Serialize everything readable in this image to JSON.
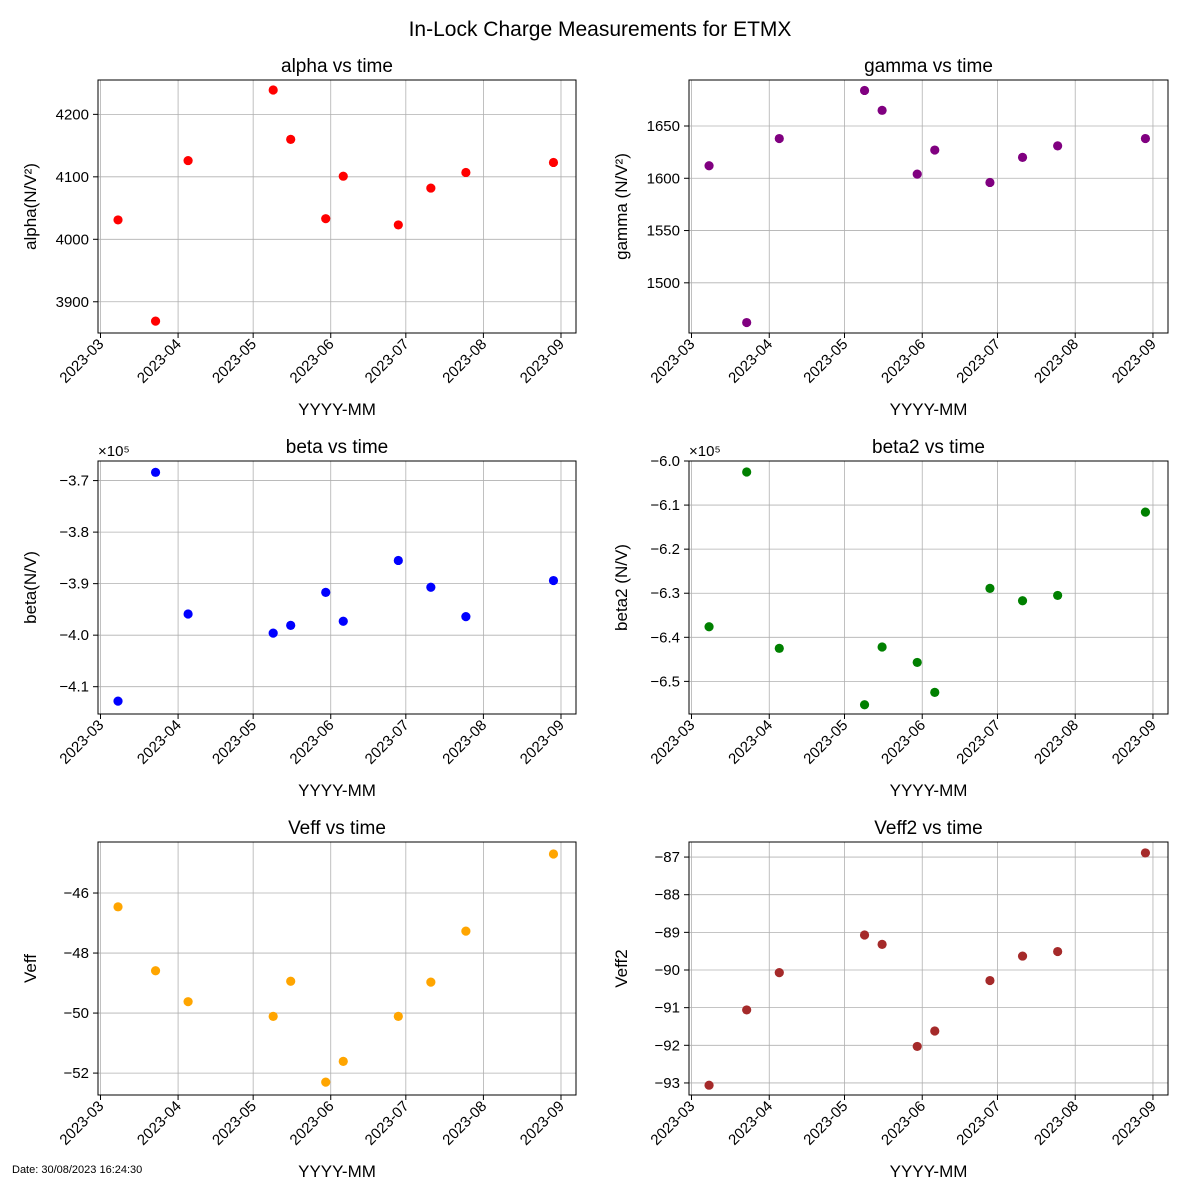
{
  "figure": {
    "title": "In-Lock Charge Measurements for ETMX",
    "date_note": "Date: 30/08/2023 16:24:30"
  },
  "chart_data": [
    {
      "type": "scatter",
      "title": "alpha vs time",
      "xlabel": "YYYY-MM",
      "ylabel": "alpha(N/V²)",
      "color": "#ff0000",
      "grid": true,
      "x_ticks": [
        "2023-03",
        "2023-04",
        "2023-05",
        "2023-06",
        "2023-07",
        "2023-08",
        "2023-09"
      ],
      "y_ticks": [
        3900,
        4000,
        4100,
        4200
      ],
      "ylim": [
        3850,
        4255
      ],
      "points": [
        {
          "x": "2023-03-08",
          "y": 4031
        },
        {
          "x": "2023-03-23",
          "y": 3869
        },
        {
          "x": "2023-04-05",
          "y": 4126
        },
        {
          "x": "2023-05-09",
          "y": 4239
        },
        {
          "x": "2023-05-16",
          "y": 4160
        },
        {
          "x": "2023-05-30",
          "y": 4033
        },
        {
          "x": "2023-06-06",
          "y": 4101
        },
        {
          "x": "2023-06-28",
          "y": 4023
        },
        {
          "x": "2023-07-11",
          "y": 4082
        },
        {
          "x": "2023-07-25",
          "y": 4107
        },
        {
          "x": "2023-08-29",
          "y": 4123
        }
      ]
    },
    {
      "type": "scatter",
      "title": "gamma vs time",
      "xlabel": "YYYY-MM",
      "ylabel": "gamma (N/V²)",
      "color": "#800080",
      "grid": true,
      "x_ticks": [
        "2023-03",
        "2023-04",
        "2023-05",
        "2023-06",
        "2023-07",
        "2023-08",
        "2023-09"
      ],
      "y_ticks": [
        1500,
        1550,
        1600,
        1650
      ],
      "ylim": [
        1452,
        1694
      ],
      "points": [
        {
          "x": "2023-03-08",
          "y": 1612
        },
        {
          "x": "2023-03-23",
          "y": 1462
        },
        {
          "x": "2023-04-05",
          "y": 1638
        },
        {
          "x": "2023-05-09",
          "y": 1684
        },
        {
          "x": "2023-05-16",
          "y": 1665
        },
        {
          "x": "2023-05-30",
          "y": 1604
        },
        {
          "x": "2023-06-06",
          "y": 1627
        },
        {
          "x": "2023-06-28",
          "y": 1596
        },
        {
          "x": "2023-07-11",
          "y": 1620
        },
        {
          "x": "2023-07-25",
          "y": 1631
        },
        {
          "x": "2023-08-29",
          "y": 1638
        }
      ]
    },
    {
      "type": "scatter",
      "title": "beta vs time",
      "xlabel": "YYYY-MM",
      "ylabel": "beta(N/V)",
      "y_multiplier": "×10⁵",
      "color": "#0000ff",
      "grid": true,
      "x_ticks": [
        "2023-03",
        "2023-04",
        "2023-05",
        "2023-06",
        "2023-07",
        "2023-08",
        "2023-09"
      ],
      "y_ticks": [
        -4.1,
        -4.0,
        -3.9,
        -3.8,
        -3.7
      ],
      "ylim": [
        -4.153,
        -3.662
      ],
      "points": [
        {
          "x": "2023-03-08",
          "y": -4.128
        },
        {
          "x": "2023-03-23",
          "y": -3.684
        },
        {
          "x": "2023-04-05",
          "y": -3.959
        },
        {
          "x": "2023-05-09",
          "y": -3.996
        },
        {
          "x": "2023-05-16",
          "y": -3.981
        },
        {
          "x": "2023-05-30",
          "y": -3.917
        },
        {
          "x": "2023-06-06",
          "y": -3.973
        },
        {
          "x": "2023-06-28",
          "y": -3.855
        },
        {
          "x": "2023-07-11",
          "y": -3.907
        },
        {
          "x": "2023-07-25",
          "y": -3.964
        },
        {
          "x": "2023-08-29",
          "y": -3.894
        }
      ]
    },
    {
      "type": "scatter",
      "title": "beta2 vs time",
      "xlabel": "YYYY-MM",
      "ylabel": "beta2 (N/V)",
      "y_multiplier": "×10⁵",
      "color": "#008000",
      "grid": true,
      "x_ticks": [
        "2023-03",
        "2023-04",
        "2023-05",
        "2023-06",
        "2023-07",
        "2023-08",
        "2023-09"
      ],
      "y_ticks": [
        -6.5,
        -6.4,
        -6.3,
        -6.2,
        -6.1,
        -6.0
      ],
      "ylim": [
        -6.574,
        -6.0
      ],
      "points": [
        {
          "x": "2023-03-08",
          "y": -6.376
        },
        {
          "x": "2023-03-23",
          "y": -6.025
        },
        {
          "x": "2023-04-05",
          "y": -6.425
        },
        {
          "x": "2023-05-09",
          "y": -6.553
        },
        {
          "x": "2023-05-16",
          "y": -6.422
        },
        {
          "x": "2023-05-30",
          "y": -6.457
        },
        {
          "x": "2023-06-06",
          "y": -6.525
        },
        {
          "x": "2023-06-28",
          "y": -6.289
        },
        {
          "x": "2023-07-11",
          "y": -6.317
        },
        {
          "x": "2023-07-25",
          "y": -6.305
        },
        {
          "x": "2023-08-29",
          "y": -6.116
        }
      ]
    },
    {
      "type": "scatter",
      "title": "Veff vs time",
      "xlabel": "YYYY-MM",
      "ylabel": "Veff",
      "color": "#ffa500",
      "grid": true,
      "x_ticks": [
        "2023-03",
        "2023-04",
        "2023-05",
        "2023-06",
        "2023-07",
        "2023-08",
        "2023-09"
      ],
      "y_ticks": [
        -52,
        -50,
        -48,
        -46
      ],
      "ylim": [
        -52.73,
        -44.3
      ],
      "points": [
        {
          "x": "2023-03-08",
          "y": -46.46
        },
        {
          "x": "2023-03-23",
          "y": -48.59
        },
        {
          "x": "2023-04-05",
          "y": -49.62
        },
        {
          "x": "2023-05-09",
          "y": -50.11
        },
        {
          "x": "2023-05-16",
          "y": -48.94
        },
        {
          "x": "2023-05-30",
          "y": -52.3
        },
        {
          "x": "2023-06-06",
          "y": -51.61
        },
        {
          "x": "2023-06-28",
          "y": -50.11
        },
        {
          "x": "2023-07-11",
          "y": -48.97
        },
        {
          "x": "2023-07-25",
          "y": -47.27
        },
        {
          "x": "2023-08-29",
          "y": -44.7
        }
      ]
    },
    {
      "type": "scatter",
      "title": "Veff2 vs time",
      "xlabel": "YYYY-MM",
      "ylabel": "Veff2",
      "color": "#a52a2a",
      "grid": true,
      "x_ticks": [
        "2023-03",
        "2023-04",
        "2023-05",
        "2023-06",
        "2023-07",
        "2023-08",
        "2023-09"
      ],
      "y_ticks": [
        -93,
        -92,
        -91,
        -90,
        -89,
        -88,
        -87
      ],
      "ylim": [
        -93.32,
        -86.6
      ],
      "points": [
        {
          "x": "2023-03-08",
          "y": -93.06
        },
        {
          "x": "2023-03-23",
          "y": -91.06
        },
        {
          "x": "2023-04-05",
          "y": -90.07
        },
        {
          "x": "2023-05-09",
          "y": -89.07
        },
        {
          "x": "2023-05-16",
          "y": -89.32
        },
        {
          "x": "2023-05-30",
          "y": -92.03
        },
        {
          "x": "2023-06-06",
          "y": -91.62
        },
        {
          "x": "2023-06-28",
          "y": -90.28
        },
        {
          "x": "2023-07-11",
          "y": -89.63
        },
        {
          "x": "2023-07-25",
          "y": -89.51
        },
        {
          "x": "2023-08-29",
          "y": -86.89
        }
      ]
    }
  ]
}
